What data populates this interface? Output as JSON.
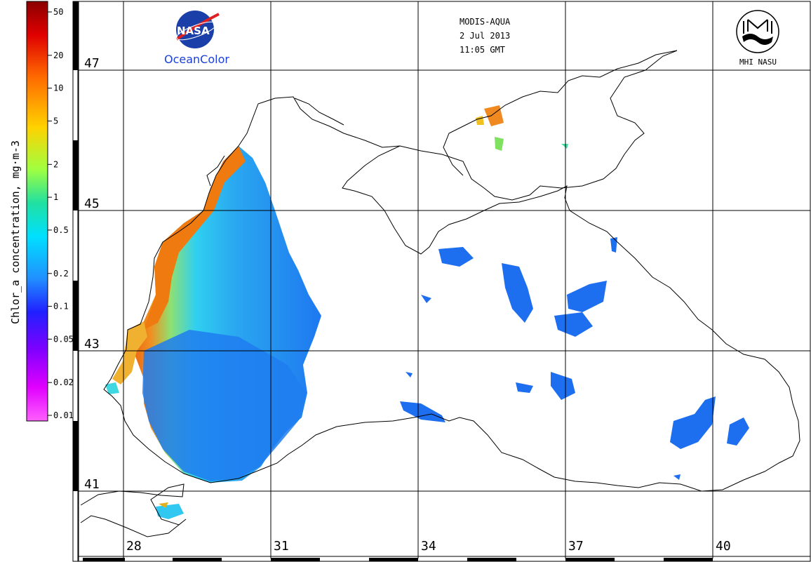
{
  "header": {
    "sensor": "MODIS-AQUA",
    "date": "2 Jul 2013",
    "time": "11:05 GMT"
  },
  "logos": {
    "nasa_word": "NASA",
    "oceancolor": "OceanColor",
    "mhi_label": "MHI NASU"
  },
  "colorbar": {
    "label": "Chlor_a concentration, mg·m-3",
    "ticks": [
      "50",
      "20",
      "10",
      "5",
      "2",
      "1",
      "0.5",
      "0.2",
      "0.1",
      "0.05",
      "0.02",
      "0.01"
    ]
  },
  "grid": {
    "lat_labels": [
      "47",
      "45",
      "43",
      "41"
    ],
    "lon_labels": [
      "28",
      "31",
      "34",
      "37",
      "40"
    ]
  },
  "colors": {
    "land_bg": "#ffffff",
    "coast": "#000000",
    "grid": "#000000",
    "low_chl": "#1e6ef0",
    "mid_chl": "#22c8f0",
    "high_chl": "#f07a10"
  }
}
